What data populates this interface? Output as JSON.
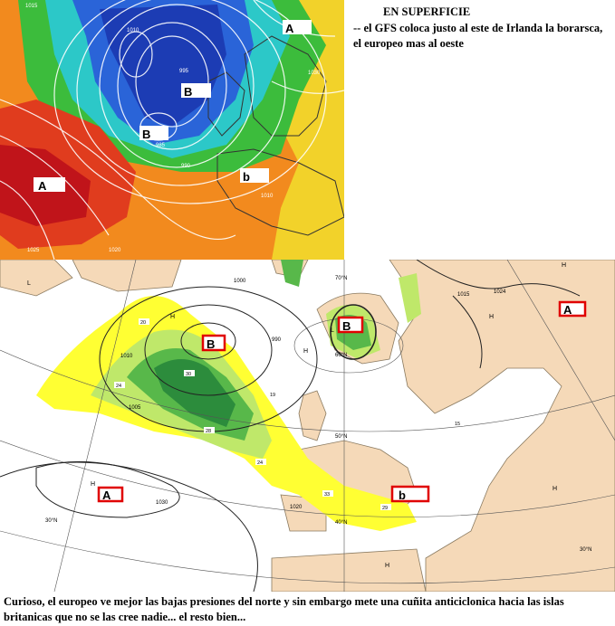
{
  "texts": {
    "heading": "EN SUPERFICIE",
    "note": "-- el GFS coloca justo al este de Irlanda la borarsca, el europeo mas al oeste",
    "caption": "Curioso, el europeo ve mejor las bajas presiones del norte y sin embargo mete una cuñita anticiclonica hacia las islas britanicas que no se las cree nadie... el resto bien..."
  },
  "top_map": {
    "labels": [
      "A",
      "B",
      "B",
      "A",
      "b"
    ],
    "isobars": [
      "1015",
      "1010",
      "1005",
      "1000",
      "995",
      "990",
      "985",
      "980",
      "1020",
      "1025",
      "1030"
    ],
    "colors": {
      "deep_red": "#c0141a",
      "red": "#e03c1e",
      "orange": "#f28a1e",
      "yellow": "#f2d22a",
      "green": "#3cbc3c",
      "cyan": "#2cc8c8",
      "blue": "#2a64d8",
      "deep_blue": "#1c3cb4"
    }
  },
  "bottom_map": {
    "labels": [
      "B",
      "B",
      "A",
      "A",
      "b"
    ],
    "lat_labels": [
      "70°N",
      "60°N",
      "50°N",
      "40°N",
      "30°N",
      "30°N"
    ],
    "isobars": [
      "1010",
      "1020",
      "1024",
      "1030",
      "1015",
      "990",
      "1000",
      "1005"
    ],
    "h_marks": [
      "H",
      "H",
      "H",
      "H",
      "H",
      "H",
      "H",
      "L",
      "L"
    ],
    "precip": [
      "20",
      "24",
      "30",
      "28",
      "24",
      "19",
      "15",
      "33",
      "29"
    ],
    "colors": {
      "land": "#f5d9b8",
      "sea": "#ffffff",
      "yellow": "#ffff33",
      "light_green": "#bfe86a",
      "green": "#58b84a",
      "dark_green": "#2c8c3c",
      "box": "#e00000"
    }
  }
}
